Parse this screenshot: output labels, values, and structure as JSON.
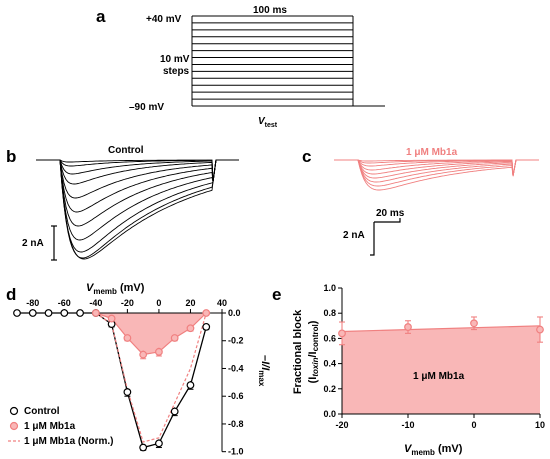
{
  "panels": {
    "a": {
      "label": "a",
      "top_voltage": "+40 mV",
      "duration": "100 ms",
      "step_label_1": "10 mV",
      "step_label_2": "steps",
      "bottom_voltage": "–90 mV",
      "vtest_main": "V",
      "vtest_sub": "test"
    },
    "b": {
      "label": "b",
      "title": "Control",
      "scale_label": "2 nA"
    },
    "c": {
      "label": "c",
      "title": "1 μM Mb1a",
      "time_scale_label": "20 ms",
      "current_scale_label": "2 nA"
    },
    "d": {
      "label": "d",
      "x_title_main": "V",
      "x_title_sub": "memb",
      "x_title_unit": " (mV)",
      "y_title": "–I/I",
      "y_title_sub": "max",
      "legend": [
        "Control",
        "1 μM Mb1a",
        "1 μM Mb1a (Norm.)"
      ]
    },
    "e": {
      "label": "e",
      "y_title_line1": "Fractional block",
      "y_title_line2": "(I",
      "y_title_line2_sub1": "toxin",
      "y_title_line2_mid": "/I",
      "y_title_line2_sub2": "control",
      "y_title_line2_end": ")",
      "x_title_main": "V",
      "x_title_sub": "memb",
      "x_title_unit": " (mV)",
      "area_label": "1 μM Mb1a"
    }
  },
  "colors": {
    "control": "#000000",
    "toxin": "#f08080",
    "toxin_fill": "#f9b7b7"
  },
  "chart_data": [
    {
      "type": "line",
      "panel": "d",
      "xlim": [
        -90,
        40
      ],
      "ylim": [
        -1.05,
        0.02
      ],
      "x_ticks": [
        -80,
        -60,
        -40,
        -20,
        0,
        20,
        40
      ],
      "y_ticks": [
        0.0,
        -0.2,
        -0.4,
        -0.6,
        -0.8,
        -1.0
      ],
      "x_tick_labels": [
        "-80",
        "-60",
        "-40",
        "-20",
        "0",
        "20",
        "40"
      ],
      "y_tick_labels": [
        "0.0",
        "-0.2",
        "-0.4",
        "-0.6",
        "-0.8",
        "-1.0"
      ],
      "series": [
        {
          "name": "Control",
          "x": [
            -90,
            -80,
            -70,
            -60,
            -50,
            -40,
            -30,
            -20,
            -10,
            0,
            10,
            20,
            30
          ],
          "y": [
            0.0,
            0.0,
            0.0,
            0.0,
            0.0,
            0.0,
            -0.08,
            -0.57,
            -0.97,
            -0.94,
            -0.71,
            -0.52,
            -0.1
          ],
          "err": [
            0,
            0,
            0,
            0,
            0,
            0,
            0.02,
            0.03,
            0.02,
            0.03,
            0.03,
            0.03,
            0.02
          ]
        },
        {
          "name": "1 μM Mb1a",
          "x": [
            -40,
            -30,
            -20,
            -10,
            0,
            10,
            20,
            30
          ],
          "y": [
            0.0,
            -0.04,
            -0.18,
            -0.3,
            -0.28,
            -0.18,
            -0.11,
            0.0
          ],
          "err": [
            0,
            0.01,
            0.02,
            0.03,
            0.03,
            0.02,
            0.02,
            0.01
          ]
        },
        {
          "name": "1 μM Mb1a (Norm.)",
          "x": [
            -40,
            -30,
            -20,
            -10,
            0,
            10,
            20,
            30
          ],
          "y": [
            0.0,
            -0.08,
            -0.55,
            -0.93,
            -0.9,
            -0.65,
            -0.4,
            0.0
          ]
        }
      ]
    },
    {
      "type": "scatter",
      "panel": "e",
      "xlim": [
        -20,
        10
      ],
      "ylim": [
        0.0,
        1.0
      ],
      "x_ticks": [
        -20,
        -10,
        0,
        10
      ],
      "y_ticks": [
        0.0,
        0.2,
        0.4,
        0.6,
        0.8,
        1.0
      ],
      "x_tick_labels": [
        "-20",
        "-10",
        "0",
        "10"
      ],
      "y_tick_labels": [
        "0.0",
        "0.2",
        "0.4",
        "0.6",
        "0.8",
        "1.0"
      ],
      "series": [
        {
          "name": "1 μM Mb1a",
          "x": [
            -20,
            -10,
            0,
            10
          ],
          "y": [
            0.64,
            0.69,
            0.72,
            0.67
          ],
          "err": [
            0.09,
            0.05,
            0.05,
            0.1
          ]
        }
      ]
    }
  ]
}
